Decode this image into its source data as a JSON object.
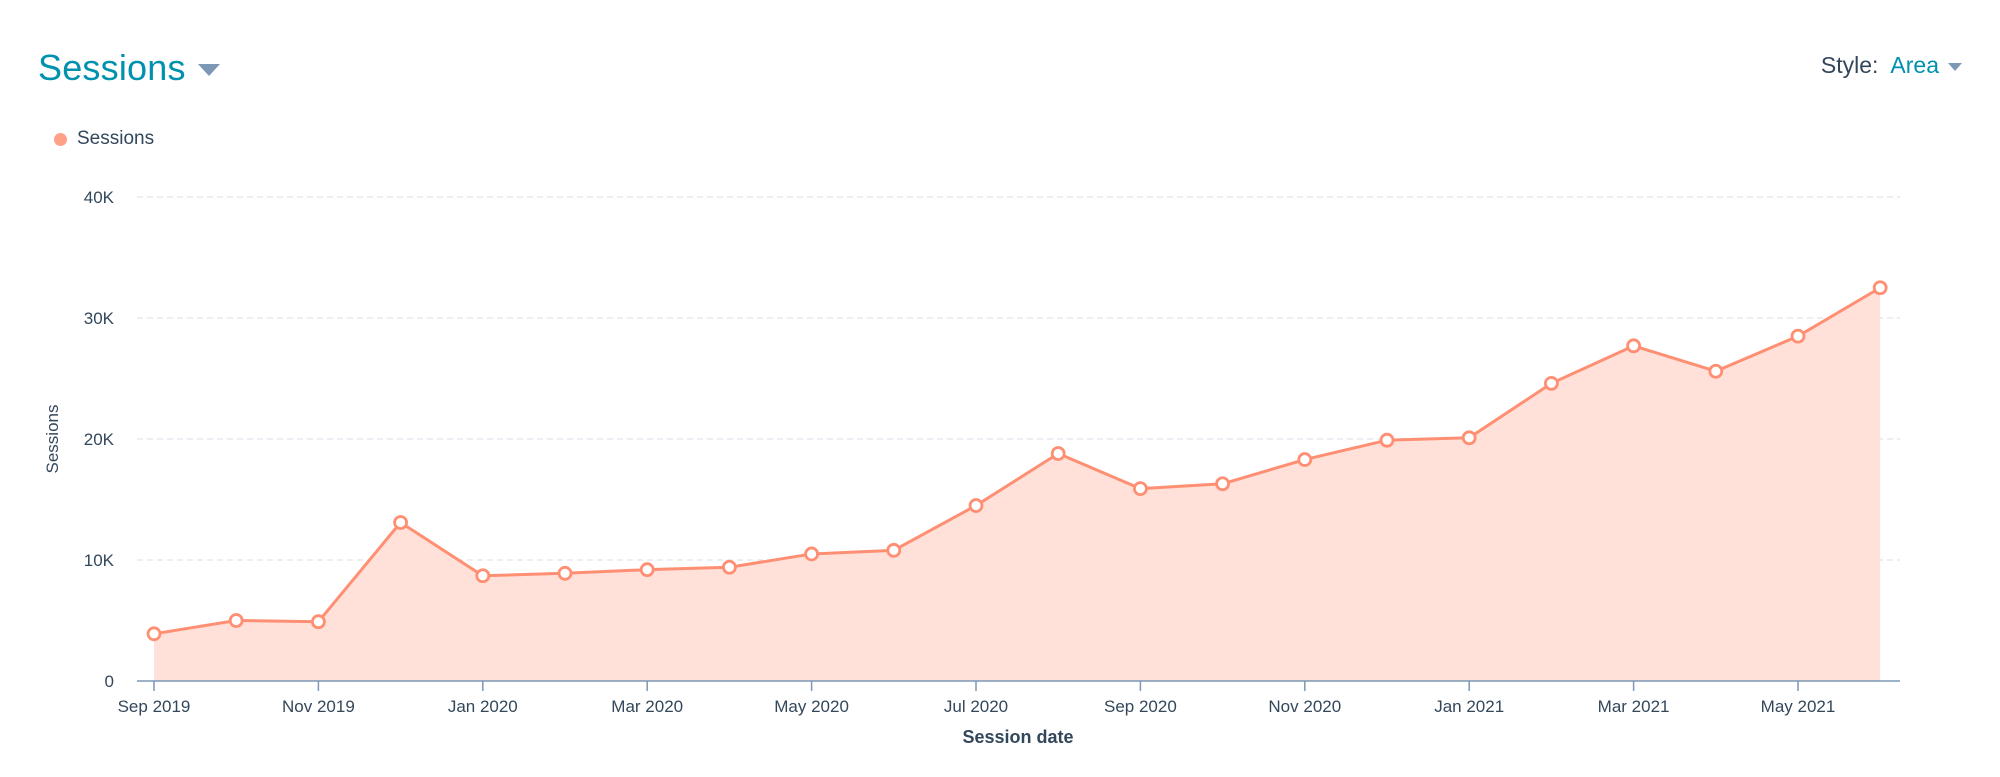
{
  "header": {
    "title": "Sessions"
  },
  "style_control": {
    "label": "Style:",
    "value": "Area"
  },
  "legend": {
    "items": [
      {
        "label": "Sessions",
        "color": "#ff8f73"
      }
    ]
  },
  "chart_data": {
    "type": "area",
    "xlabel": "Session date",
    "ylabel": "Sessions",
    "ylim": [
      0,
      40000
    ],
    "y_ticks": [
      0,
      10000,
      20000,
      30000,
      40000
    ],
    "y_tick_labels": [
      "0",
      "10K",
      "20K",
      "30K",
      "40K"
    ],
    "x_tick_labels": [
      "Sep 2019",
      "Nov 2019",
      "Jan 2020",
      "Mar 2020",
      "May 2020",
      "Jul 2020",
      "Sep 2020",
      "Nov 2020",
      "Jan 2021",
      "Mar 2021",
      "May 2021"
    ],
    "grid": true,
    "legend_position": "top-left",
    "colors": {
      "line": "#ff8f73",
      "fill": "#ffe1da",
      "grid": "#dfe3eb",
      "axis": "#7c98b6"
    },
    "categories": [
      "Sep 2019",
      "Oct 2019",
      "Nov 2019",
      "Dec 2019",
      "Jan 2020",
      "Feb 2020",
      "Mar 2020",
      "Apr 2020",
      "May 2020",
      "Jun 2020",
      "Jul 2020",
      "Aug 2020",
      "Sep 2020",
      "Oct 2020",
      "Nov 2020",
      "Dec 2020",
      "Jan 2021",
      "Feb 2021",
      "Mar 2021",
      "Apr 2021",
      "May 2021",
      "Jun 2021"
    ],
    "series": [
      {
        "name": "Sessions",
        "values": [
          3900,
          5000,
          4900,
          13100,
          8700,
          8900,
          9200,
          9400,
          10500,
          10800,
          14500,
          18800,
          15900,
          16300,
          18300,
          19900,
          20100,
          24600,
          27700,
          25600,
          28500,
          32500
        ]
      }
    ]
  }
}
